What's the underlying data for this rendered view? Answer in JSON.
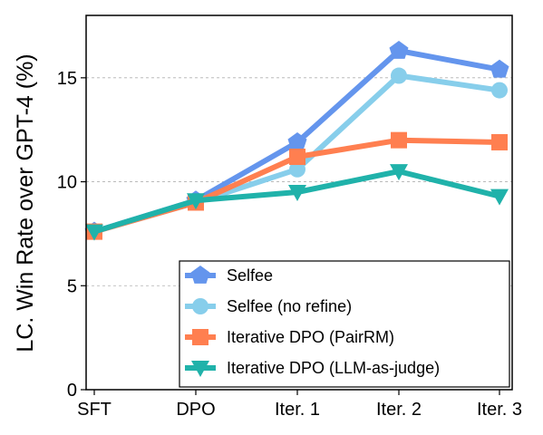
{
  "chart_data": {
    "type": "line",
    "categories": [
      "SFT",
      "DPO",
      "Iter. 1",
      "Iter. 2",
      "Iter. 3"
    ],
    "ylabel": "LC. Win Rate over GPT-4 (%)",
    "xlabel": "",
    "ylim": [
      0,
      18
    ],
    "yticks": [
      0,
      5,
      10,
      15
    ],
    "grid": "horizontal dashed",
    "legend_position": "bottom-right",
    "series": [
      {
        "name": "Selfee",
        "values": [
          7.6,
          9.1,
          11.9,
          16.3,
          15.4
        ],
        "color": "#6495ED",
        "marker": "pentagon"
      },
      {
        "name": "Selfee (no refine)",
        "values": [
          7.6,
          9.0,
          10.6,
          15.1,
          14.4
        ],
        "color": "#87CEEB",
        "marker": "circle"
      },
      {
        "name": "Iterative DPO (PairRM)",
        "values": [
          7.6,
          9.0,
          11.2,
          12.0,
          11.9
        ],
        "color": "#FF7F50",
        "marker": "square"
      },
      {
        "name": "Iterative DPO (LLM-as-judge)",
        "values": [
          7.6,
          9.1,
          9.5,
          10.5,
          9.3
        ],
        "color": "#20B2AA",
        "marker": "triangle-down"
      }
    ]
  }
}
